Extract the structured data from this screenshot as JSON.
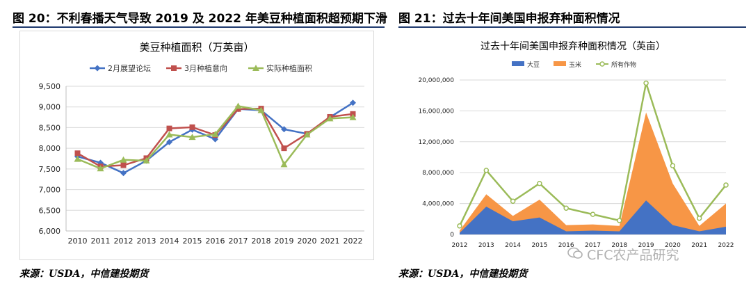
{
  "left": {
    "figure_title": "图 20：不利春播天气导致 2019 及 2022 年美豆种植面积超预期下滑",
    "source": "来源：USDA，中信建投期货"
  },
  "right": {
    "figure_title": "图 21：过去十年间美国申报弃种面积情况",
    "source": "来源：USDA，中信建投期货"
  },
  "watermark": "CFC农产品研究",
  "colors": {
    "title_rule": "#1f3a6e",
    "left_series": [
      "#4472c4",
      "#c0504d",
      "#9bbb59"
    ],
    "right_series": [
      "#4472c4",
      "#f79646",
      "#9bbb59"
    ]
  },
  "chart_data": [
    {
      "type": "line",
      "title": "美豆种植面积（万英亩）",
      "x": [
        "2010",
        "2011",
        "2012",
        "2013",
        "2014",
        "2015",
        "2016",
        "2017",
        "2018",
        "2019",
        "2020",
        "2021",
        "2022"
      ],
      "series": [
        {
          "name": "2月展望论坛",
          "values": [
            7800,
            7650,
            7400,
            7700,
            8150,
            8450,
            8220,
            8950,
            8920,
            8460,
            8350,
            8750,
            9100
          ]
        },
        {
          "name": "3月种植意向",
          "values": [
            7880,
            7560,
            7590,
            7760,
            8480,
            8510,
            8320,
            8950,
            8960,
            8000,
            8350,
            8760,
            8830
          ]
        },
        {
          "name": "实际种植面积",
          "values": [
            7740,
            7510,
            7720,
            7700,
            8330,
            8270,
            8340,
            9020,
            8920,
            7610,
            8330,
            8720,
            8750
          ]
        }
      ],
      "ylim": [
        6000,
        9500
      ],
      "yticks": [
        "6,000",
        "6,500",
        "7,000",
        "7,500",
        "8,000",
        "8,500",
        "9,000",
        "9,500"
      ],
      "legend": "top",
      "grid": true
    },
    {
      "type": "area",
      "title": "过去十年间美国申报弃种面积情况（英亩）",
      "x": [
        "2012",
        "2013",
        "2014",
        "2015",
        "2016",
        "2017",
        "2018",
        "2019",
        "2020",
        "2021",
        "2022"
      ],
      "series": [
        {
          "name": "大豆",
          "kind": "area",
          "values": [
            200000,
            3600000,
            1700000,
            2200000,
            400000,
            500000,
            400000,
            4400000,
            1200000,
            400000,
            1000000
          ]
        },
        {
          "name": "玉米",
          "kind": "area",
          "values": [
            500000,
            5200000,
            2400000,
            4500000,
            1200000,
            1300000,
            1100000,
            15800000,
            6600000,
            1100000,
            4000000
          ]
        },
        {
          "name": "所有作物",
          "kind": "line",
          "values": [
            1100000,
            8300000,
            4300000,
            6600000,
            3400000,
            2600000,
            1800000,
            19600000,
            8900000,
            2100000,
            6400000
          ]
        }
      ],
      "ylim": [
        0,
        20000000
      ],
      "yticks": [
        "0",
        "4,000,000",
        "8,000,000",
        "12,000,000",
        "16,000,000",
        "20,000,000"
      ],
      "legend": "top",
      "grid": true
    }
  ]
}
